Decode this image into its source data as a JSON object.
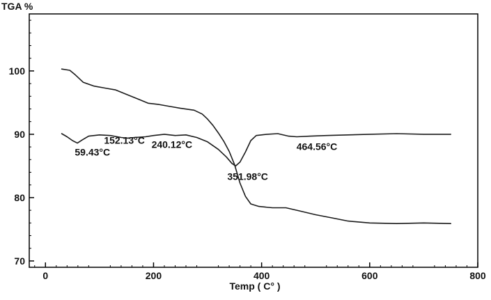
{
  "chart_data": {
    "type": "line",
    "ylabel": "TGA %",
    "xlabel": "Temp ( C° )",
    "xlim": [
      -30,
      800
    ],
    "ylim": [
      69,
      109
    ],
    "x_ticks": [
      0,
      200,
      400,
      600,
      800
    ],
    "y_ticks": [
      70,
      80,
      90,
      100
    ],
    "grid": false,
    "series": [
      {
        "points": [
          [
            30,
            100.3
          ],
          [
            45,
            100.1
          ],
          [
            55,
            99.4
          ],
          [
            70,
            98.2
          ],
          [
            90,
            97.6
          ],
          [
            110,
            97.3
          ],
          [
            130,
            97.0
          ],
          [
            150,
            96.3
          ],
          [
            170,
            95.6
          ],
          [
            190,
            94.9
          ],
          [
            210,
            94.7
          ],
          [
            230,
            94.4
          ],
          [
            250,
            94.1
          ],
          [
            275,
            93.8
          ],
          [
            290,
            93.2
          ],
          [
            300,
            92.4
          ],
          [
            310,
            91.4
          ],
          [
            320,
            90.2
          ],
          [
            330,
            88.9
          ],
          [
            340,
            87.3
          ],
          [
            350,
            85.2
          ],
          [
            360,
            82.3
          ],
          [
            370,
            80.2
          ],
          [
            380,
            79.0
          ],
          [
            395,
            78.6
          ],
          [
            420,
            78.4
          ],
          [
            445,
            78.4
          ],
          [
            470,
            77.9
          ],
          [
            500,
            77.3
          ],
          [
            530,
            76.8
          ],
          [
            560,
            76.3
          ],
          [
            600,
            76.0
          ],
          [
            650,
            75.9
          ],
          [
            700,
            76.0
          ],
          [
            750,
            75.9
          ]
        ]
      },
      {
        "points": [
          [
            30,
            90.1
          ],
          [
            40,
            89.6
          ],
          [
            50,
            89.0
          ],
          [
            59,
            88.6
          ],
          [
            68,
            89.1
          ],
          [
            80,
            89.7
          ],
          [
            100,
            89.9
          ],
          [
            120,
            89.8
          ],
          [
            140,
            89.5
          ],
          [
            152,
            89.4
          ],
          [
            165,
            89.5
          ],
          [
            185,
            89.6
          ],
          [
            200,
            89.8
          ],
          [
            220,
            90.0
          ],
          [
            240,
            89.8
          ],
          [
            260,
            89.9
          ],
          [
            280,
            89.5
          ],
          [
            300,
            88.8
          ],
          [
            320,
            87.6
          ],
          [
            335,
            86.4
          ],
          [
            345,
            85.4
          ],
          [
            352,
            85.0
          ],
          [
            360,
            85.6
          ],
          [
            370,
            87.2
          ],
          [
            380,
            89.0
          ],
          [
            390,
            89.8
          ],
          [
            410,
            90.0
          ],
          [
            430,
            90.1
          ],
          [
            450,
            89.7
          ],
          [
            465,
            89.6
          ],
          [
            490,
            89.7
          ],
          [
            520,
            89.8
          ],
          [
            560,
            89.9
          ],
          [
            600,
            90.0
          ],
          [
            650,
            90.1
          ],
          [
            700,
            90.0
          ],
          [
            750,
            90.0
          ]
        ]
      }
    ],
    "annotations": [
      {
        "text": "59.43°C",
        "x": 59.43,
        "y": 88.6
      },
      {
        "text": "152.13°C",
        "x": 152.13,
        "y": 89.4
      },
      {
        "text": "240.12°C",
        "x": 240.12,
        "y": 89.8
      },
      {
        "text": "351.98°C",
        "x": 351.98,
        "y": 85.0
      },
      {
        "text": "464.56°C",
        "x": 464.56,
        "y": 89.6
      }
    ]
  }
}
